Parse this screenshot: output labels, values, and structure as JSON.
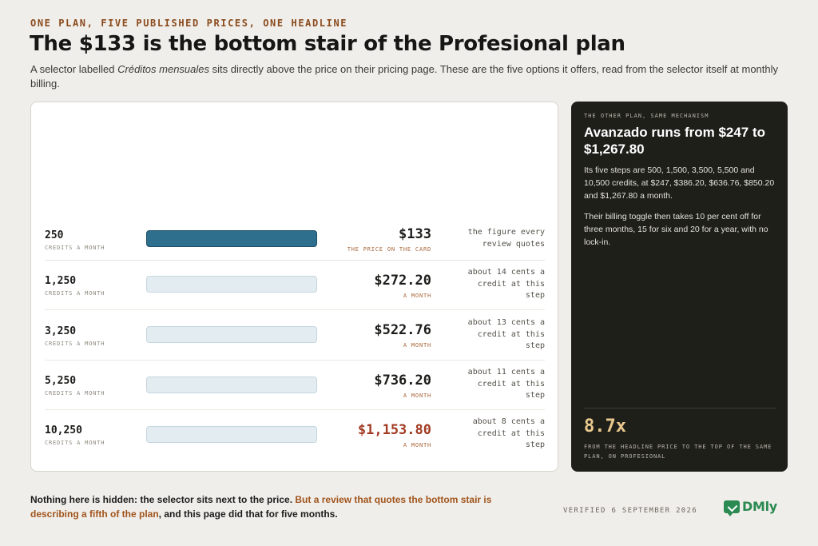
{
  "header": {
    "kicker": "ONE PLAN, FIVE PUBLISHED PRICES, ONE HEADLINE",
    "title": "The $133 is the bottom stair of the Profesional plan",
    "lede_1": "A selector labelled ",
    "lede_em": "Créditos mensuales",
    "lede_2": " sits directly above the price on their pricing page. These are the five options it offers, read from the selector itself at monthly billing."
  },
  "steps": [
    {
      "credits": "250",
      "credits_unit": "CREDITS A MONTH",
      "price": "$133",
      "price_sub": "THE PRICE ON THE CARD",
      "note": "the figure every review quotes",
      "selected": true
    },
    {
      "credits": "1,250",
      "credits_unit": "CREDITS A MONTH",
      "price": "$272.20",
      "price_sub": "A MONTH",
      "note": "about 14 cents a credit at this step",
      "selected": false
    },
    {
      "credits": "3,250",
      "credits_unit": "CREDITS A MONTH",
      "price": "$522.76",
      "price_sub": "A MONTH",
      "note": "about 13 cents a credit at this step",
      "selected": false
    },
    {
      "credits": "5,250",
      "credits_unit": "CREDITS A MONTH",
      "price": "$736.20",
      "price_sub": "A MONTH",
      "note": "about 11 cents a credit at this step",
      "selected": false
    },
    {
      "credits": "10,250",
      "credits_unit": "CREDITS A MONTH",
      "price": "$1,153.80",
      "price_sub": "A MONTH",
      "note": "about 8 cents a credit at this step",
      "selected": false
    }
  ],
  "side_panel": {
    "kicker": "THE OTHER PLAN, SAME MECHANISM",
    "title": "Avanzado runs from $247 to $1,267.80",
    "para_1": "Its five steps are 500, 1,500, 3,500, 5,500 and 10,500 credits, at $247, $386.20, $636.76, $850.20 and $1,267.80 a month.",
    "para_2": "Their billing toggle then takes 10 per cent off for three months, 15 for six and 20 for a year, with no lock-in.",
    "stat": "8.7x",
    "stat_caption": "FROM THE HEADLINE PRICE TO THE TOP OF THE SAME PLAN, ON PROFESIONAL"
  },
  "footer": {
    "text_1": "Nothing here is hidden: the selector sits next to the price. ",
    "text_highlight": "But a review that quotes the bottom stair is describing a fifth of the plan",
    "text_2": ", and this page did that for five months.",
    "verified": "VERIFIED 6 SEPTEMBER 2026",
    "logo": "DMly"
  },
  "colors": {
    "accent_brown": "#8a4a1c",
    "selected_bar": "#2e6f8e",
    "unselected_bar": "#e3ecf1",
    "top_price_red": "#a23a22",
    "panel_bg": "#1f1f1a",
    "stat_gold": "#e9c98e",
    "logo_green": "#2a8a52"
  },
  "icons": {
    "logo": "speech-bubble-check-icon"
  }
}
